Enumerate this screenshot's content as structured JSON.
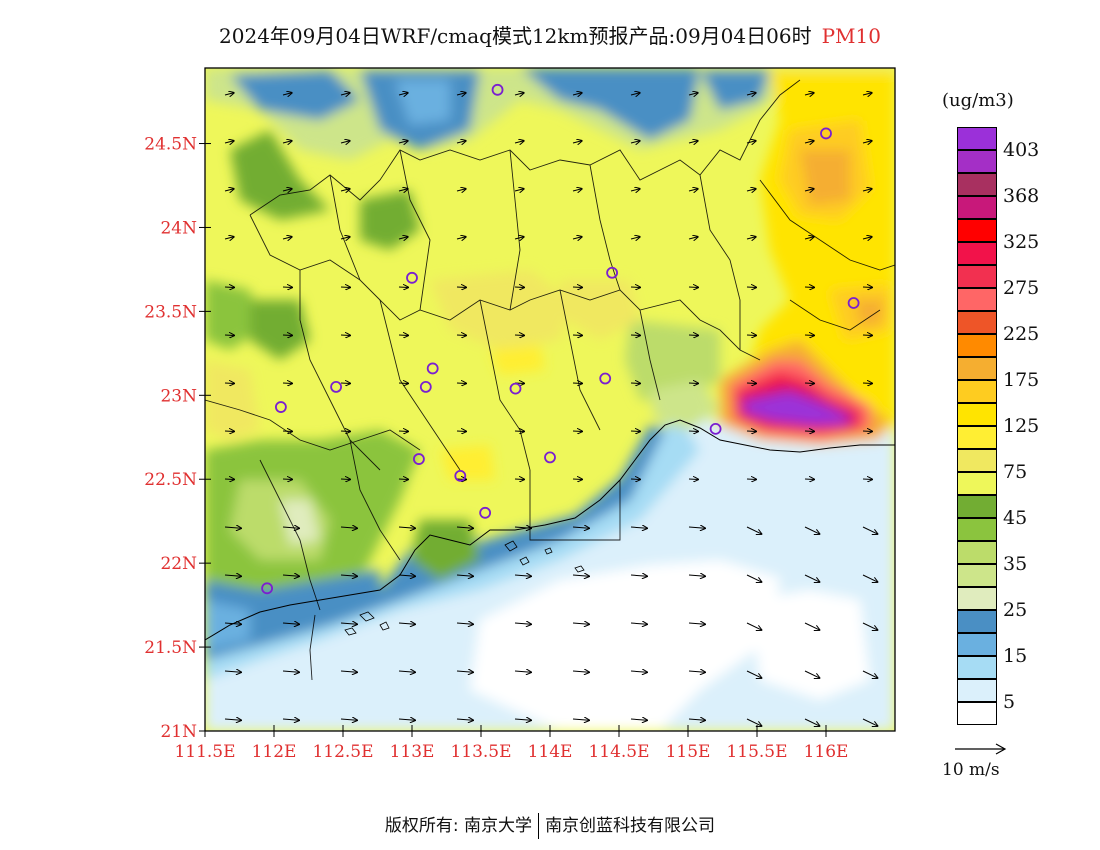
{
  "title": {
    "text": "2024年09月04日WRF/cmaq模式12km预报产品:09月04日06时",
    "pollutant": "PM10"
  },
  "map": {
    "lat_ticks": [
      {
        "value": 24.5,
        "label": "24.5N"
      },
      {
        "value": 24.0,
        "label": "24N"
      },
      {
        "value": 23.5,
        "label": "23.5N"
      },
      {
        "value": 23.0,
        "label": "23N"
      },
      {
        "value": 22.5,
        "label": "22.5N"
      },
      {
        "value": 22.0,
        "label": "22N"
      },
      {
        "value": 21.5,
        "label": "21.5N"
      },
      {
        "value": 21.0,
        "label": "21N"
      }
    ],
    "lon_ticks": [
      {
        "value": 111.5,
        "label": "111.5E"
      },
      {
        "value": 112.0,
        "label": "112E"
      },
      {
        "value": 112.5,
        "label": "112.5E"
      },
      {
        "value": 113.0,
        "label": "113E"
      },
      {
        "value": 113.5,
        "label": "113.5E"
      },
      {
        "value": 114.0,
        "label": "114E"
      },
      {
        "value": 114.5,
        "label": "114.5E"
      },
      {
        "value": 115.0,
        "label": "115E"
      },
      {
        "value": 115.5,
        "label": "115.5E"
      },
      {
        "value": 116.0,
        "label": "116E"
      }
    ],
    "lon_range": [
      111.5,
      116.5
    ],
    "lat_range": [
      21.0,
      24.95
    ],
    "stations": [
      {
        "lon": 113.62,
        "lat": 24.82
      },
      {
        "lon": 116.0,
        "lat": 24.56
      },
      {
        "lon": 114.45,
        "lat": 23.73
      },
      {
        "lon": 116.2,
        "lat": 23.55
      },
      {
        "lon": 113.0,
        "lat": 23.7
      },
      {
        "lon": 112.45,
        "lat": 23.05
      },
      {
        "lon": 112.05,
        "lat": 22.93
      },
      {
        "lon": 113.1,
        "lat": 23.05
      },
      {
        "lon": 113.15,
        "lat": 23.16
      },
      {
        "lon": 113.75,
        "lat": 23.04
      },
      {
        "lon": 114.4,
        "lat": 23.1
      },
      {
        "lon": 113.05,
        "lat": 22.62
      },
      {
        "lon": 113.35,
        "lat": 22.52
      },
      {
        "lon": 114.0,
        "lat": 22.63
      },
      {
        "lon": 113.53,
        "lat": 22.3
      },
      {
        "lon": 111.95,
        "lat": 21.85
      },
      {
        "lon": 115.2,
        "lat": 22.8
      }
    ]
  },
  "legend": {
    "unit": "(ug/m3)",
    "bins": [
      {
        "color": "#9b30d9",
        "label": "403"
      },
      {
        "color": "#a42fc6",
        "label": ""
      },
      {
        "color": "#a83060",
        "label": "368"
      },
      {
        "color": "#c8187a",
        "label": ""
      },
      {
        "color": "#ff0000",
        "label": "325"
      },
      {
        "color": "#f2124a",
        "label": ""
      },
      {
        "color": "#f23050",
        "label": "275"
      },
      {
        "color": "#ff6666",
        "label": ""
      },
      {
        "color": "#ee5528",
        "label": "225"
      },
      {
        "color": "#ff8a00",
        "label": ""
      },
      {
        "color": "#f5ae30",
        "label": "175"
      },
      {
        "color": "#fecc20",
        "label": ""
      },
      {
        "color": "#ffe400",
        "label": "125"
      },
      {
        "color": "#ffee33",
        "label": ""
      },
      {
        "color": "#f0e860",
        "label": "75"
      },
      {
        "color": "#eef75a",
        "label": ""
      },
      {
        "color": "#72ad33",
        "label": "45"
      },
      {
        "color": "#8bc43e",
        "label": ""
      },
      {
        "color": "#bcdc6a",
        "label": "35"
      },
      {
        "color": "#cde58a",
        "label": ""
      },
      {
        "color": "#e0ecbe",
        "label": "25"
      },
      {
        "color": "#4a8fc4",
        "label": ""
      },
      {
        "color": "#6ab0e0",
        "label": "15"
      },
      {
        "color": "#a6dcf4",
        "label": ""
      },
      {
        "color": "#dbf0fb",
        "label": "5"
      },
      {
        "color": "#ffffff",
        "label": ""
      }
    ]
  },
  "wind_reference": {
    "label": "10 m/s"
  },
  "footer": {
    "left": "版权所有: 南京大学",
    "right": "南京创蓝科技有限公司"
  }
}
